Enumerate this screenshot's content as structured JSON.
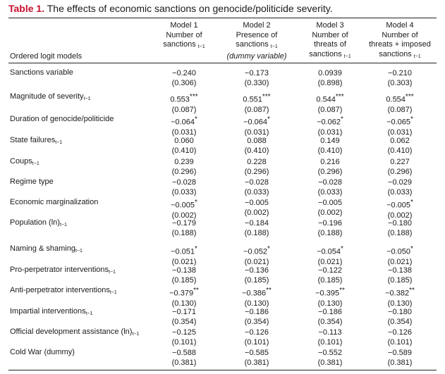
{
  "title": {
    "number": "Table 1.",
    "text": "The effects of economic sanctions on genocide/politicide severity."
  },
  "row_header_label": "Ordered logit models",
  "columns": [
    {
      "lines": [
        "Model 1",
        "Number of",
        "sanctions"
      ],
      "sub": "t−1",
      "italic_line": ""
    },
    {
      "lines": [
        "Model 2",
        "Presence of",
        "sanctions"
      ],
      "sub": "t−1",
      "italic_line": "(dummy variable)"
    },
    {
      "lines": [
        "Model 3",
        "Number of",
        "threats of",
        "sanctions"
      ],
      "sub": "t−1",
      "italic_line": ""
    },
    {
      "lines": [
        "Model 4",
        "Number of",
        "threats + imposed",
        "sanctions"
      ],
      "sub": "t−1",
      "italic_line": ""
    }
  ],
  "rows": [
    {
      "label": "Sanctions variable",
      "sub": "",
      "cells": [
        {
          "coef": "−0.240",
          "stars": "",
          "se": "(0.306)"
        },
        {
          "coef": "−0.173",
          "stars": "",
          "se": "(0.330)"
        },
        {
          "coef": "0.0939",
          "stars": "",
          "se": "(0.898)"
        },
        {
          "coef": "−0.210",
          "stars": "",
          "se": "(0.303)"
        }
      ]
    },
    {
      "label": "Magnitude of severity",
      "sub": "t−1",
      "cells": [
        {
          "coef": "0.553",
          "stars": "***",
          "se": "(0.087)"
        },
        {
          "coef": "0.551",
          "stars": "***",
          "se": "(0.087)"
        },
        {
          "coef": "0.544",
          "stars": "***",
          "se": "(0.087)"
        },
        {
          "coef": "0.554",
          "stars": "***",
          "se": "(0.087)"
        }
      ]
    },
    {
      "label": "Duration of genocide/politicide",
      "sub": "",
      "cells": [
        {
          "coef": "−0.064",
          "stars": "*",
          "se": "(0.031)"
        },
        {
          "coef": "−0.064",
          "stars": "*",
          "se": "(0.031)"
        },
        {
          "coef": "−0.062",
          "stars": "*",
          "se": "(0.031)"
        },
        {
          "coef": "−0.065",
          "stars": "*",
          "se": "(0.031)"
        }
      ]
    },
    {
      "label": "State failures",
      "sub": "t−1",
      "cells": [
        {
          "coef": "0.060",
          "stars": "",
          "se": "(0.410)"
        },
        {
          "coef": "0.088",
          "stars": "",
          "se": "(0.410)"
        },
        {
          "coef": "0.149",
          "stars": "",
          "se": "(0.410)"
        },
        {
          "coef": "0.062",
          "stars": "",
          "se": "(0.410)"
        }
      ]
    },
    {
      "label": "Coups",
      "sub": "t−1",
      "cells": [
        {
          "coef": "0.239",
          "stars": "",
          "se": "(0.296)"
        },
        {
          "coef": "0.228",
          "stars": "",
          "se": "(0.296)"
        },
        {
          "coef": "0.216",
          "stars": "",
          "se": "(0.296)"
        },
        {
          "coef": "0.227",
          "stars": "",
          "se": "(0.296)"
        }
      ]
    },
    {
      "label": "Regime type",
      "sub": "",
      "cells": [
        {
          "coef": "−0.028",
          "stars": "",
          "se": "(0.033)"
        },
        {
          "coef": "−0.028",
          "stars": "",
          "se": "(0.033)"
        },
        {
          "coef": "−0.028",
          "stars": "",
          "se": "(0.033)"
        },
        {
          "coef": "−0.029",
          "stars": "",
          "se": "(0.033)"
        }
      ]
    },
    {
      "label": "Economic marginalization",
      "sub": "",
      "cells": [
        {
          "coef": "−0.005",
          "stars": "*",
          "se": "(0.002)"
        },
        {
          "coef": "−0.005",
          "stars": "",
          "se": "(0.002)"
        },
        {
          "coef": "−0.005",
          "stars": "",
          "se": "(0.002)"
        },
        {
          "coef": "−0.005",
          "stars": "*",
          "se": "(0.002)"
        }
      ]
    },
    {
      "label": "Population (ln)",
      "sub": "t−1",
      "cells": [
        {
          "coef": "−0.179",
          "stars": "",
          "se": "(0.188)"
        },
        {
          "coef": "−0.184",
          "stars": "",
          "se": "(0.188)"
        },
        {
          "coef": "−0.196",
          "stars": "",
          "se": "(0.188)"
        },
        {
          "coef": "−0.180",
          "stars": "",
          "se": "(0.188)"
        }
      ]
    },
    {
      "label": "Naming & shaming",
      "sub": "t−1",
      "cells": [
        {
          "coef": "−0.051",
          "stars": "*",
          "se": "(0.021)"
        },
        {
          "coef": "−0.052",
          "stars": "*",
          "se": "(0.021)"
        },
        {
          "coef": "−0.054",
          "stars": "*",
          "se": "(0.021)"
        },
        {
          "coef": "−0.050",
          "stars": "*",
          "se": "(0.021)"
        }
      ]
    },
    {
      "label": "Pro-perpetrator interventions",
      "sub": "t−1",
      "cells": [
        {
          "coef": "−0.138",
          "stars": "",
          "se": "(0.185)"
        },
        {
          "coef": "−0.136",
          "stars": "",
          "se": "(0.185)"
        },
        {
          "coef": "−0.122",
          "stars": "",
          "se": "(0.185)"
        },
        {
          "coef": "−0.138",
          "stars": "",
          "se": "(0.185)"
        }
      ]
    },
    {
      "label": "Anti-perpetrator interventions",
      "sub": "t−1",
      "cells": [
        {
          "coef": "−0.379",
          "stars": "**",
          "se": "(0.130)"
        },
        {
          "coef": "−0.386",
          "stars": "**",
          "se": "(0.130)"
        },
        {
          "coef": "−0.395",
          "stars": "**",
          "se": "(0.130)"
        },
        {
          "coef": "−0.382",
          "stars": "**",
          "se": "(0.130)"
        }
      ]
    },
    {
      "label": "Impartial interventions",
      "sub": "t−1",
      "cells": [
        {
          "coef": "−0.171",
          "stars": "",
          "se": "(0.354)"
        },
        {
          "coef": "−0.186",
          "stars": "",
          "se": "(0.354)"
        },
        {
          "coef": "−0.186",
          "stars": "",
          "se": "(0.354)"
        },
        {
          "coef": "−0.180",
          "stars": "",
          "se": "(0.354)"
        }
      ]
    },
    {
      "label": "Official development assistance (ln)",
      "sub": "t−1",
      "cells": [
        {
          "coef": "−0.125",
          "stars": "",
          "se": "(0.101)"
        },
        {
          "coef": "−0.126",
          "stars": "",
          "se": "(0.101)"
        },
        {
          "coef": "−0.113",
          "stars": "",
          "se": "(0.101)"
        },
        {
          "coef": "−0.126",
          "stars": "",
          "se": "(0.101)"
        }
      ]
    },
    {
      "label": "Cold War (dummy)",
      "sub": "",
      "cells": [
        {
          "coef": "−0.588",
          "stars": "",
          "se": "(0.381)"
        },
        {
          "coef": "−0.585",
          "stars": "",
          "se": "(0.381)"
        },
        {
          "coef": "−0.552",
          "stars": "",
          "se": "(0.381)"
        },
        {
          "coef": "−0.589",
          "stars": "",
          "se": "(0.381)"
        }
      ]
    }
  ]
}
